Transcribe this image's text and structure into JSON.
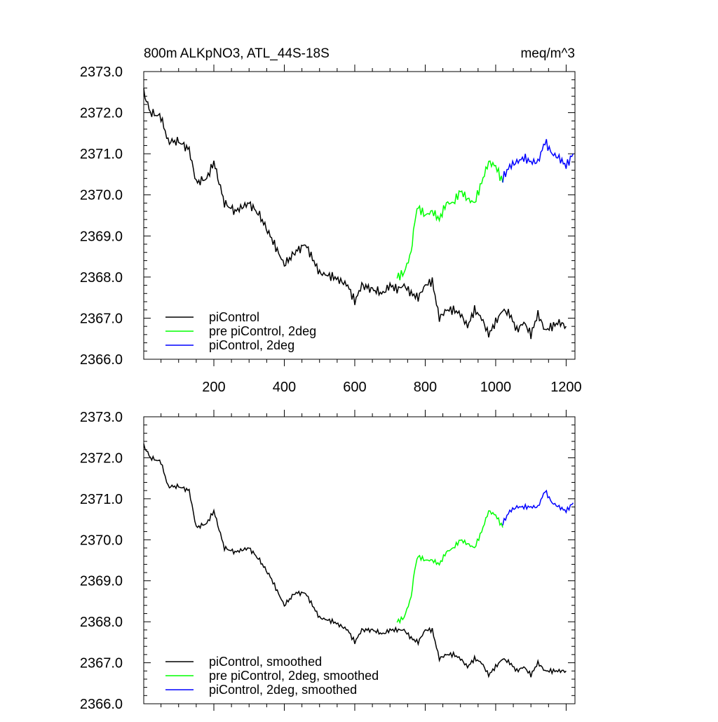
{
  "chart_data": [
    {
      "type": "line",
      "title": "800m ALKpNO3, ATL_44S-18S",
      "units_label": "meq/m^3",
      "xlabel": "",
      "ylabel": "",
      "xlim": [
        1,
        1225
      ],
      "ylim": [
        2366.0,
        2373.0
      ],
      "xticks": [
        200,
        400,
        600,
        800,
        1000,
        1200
      ],
      "xtick_labels": [
        "200",
        "400",
        "600",
        "800",
        "1000",
        "1200"
      ],
      "yticks": [
        2366.0,
        2367.0,
        2368.0,
        2369.0,
        2370.0,
        2371.0,
        2372.0,
        2373.0
      ],
      "ytick_labels": [
        "2366.0",
        "2367.0",
        "2368.0",
        "2369.0",
        "2370.0",
        "2371.0",
        "2372.0",
        "2373.0"
      ],
      "grid": false,
      "legend": "bottom-left",
      "series": [
        {
          "name": "piControl",
          "color": "#000000",
          "x": [
            1,
            20,
            50,
            70,
            100,
            130,
            150,
            180,
            200,
            230,
            260,
            300,
            330,
            360,
            400,
            430,
            460,
            500,
            540,
            580,
            600,
            620,
            650,
            680,
            700,
            720,
            740,
            760,
            780,
            800,
            820,
            840,
            860,
            880,
            900,
            920,
            940,
            960,
            980,
            1000,
            1020,
            1040,
            1060,
            1080,
            1100,
            1120,
            1140,
            1160,
            1180,
            1200
          ],
          "y": [
            2372.5,
            2372.0,
            2371.9,
            2371.3,
            2371.3,
            2371.1,
            2370.3,
            2370.4,
            2370.8,
            2369.8,
            2369.6,
            2369.8,
            2369.5,
            2369.0,
            2368.3,
            2368.6,
            2368.8,
            2368.1,
            2368.0,
            2367.8,
            2367.4,
            2367.8,
            2367.7,
            2367.6,
            2367.8,
            2367.7,
            2367.8,
            2367.6,
            2367.5,
            2367.8,
            2367.9,
            2367.0,
            2367.2,
            2367.2,
            2367.1,
            2366.8,
            2367.2,
            2367.0,
            2366.6,
            2366.9,
            2367.2,
            2367.1,
            2366.7,
            2366.9,
            2366.6,
            2367.1,
            2366.7,
            2366.8,
            2366.9,
            2366.8
          ]
        },
        {
          "name": "pre piControl, 2deg",
          "color": "#00ff00",
          "x": [
            720,
            740,
            760,
            770,
            780,
            800,
            820,
            840,
            860,
            880,
            900,
            920,
            940,
            960,
            980,
            1000,
            1020
          ],
          "y": [
            2368.0,
            2368.1,
            2368.6,
            2369.4,
            2369.7,
            2369.5,
            2369.6,
            2369.4,
            2369.8,
            2369.8,
            2370.1,
            2369.9,
            2369.8,
            2370.3,
            2370.8,
            2370.7,
            2370.3
          ]
        },
        {
          "name": "piControl, 2deg",
          "color": "#0000ff",
          "x": [
            1020,
            1040,
            1060,
            1080,
            1100,
            1120,
            1140,
            1160,
            1180,
            1200,
            1220
          ],
          "y": [
            2370.4,
            2370.7,
            2370.8,
            2370.9,
            2370.8,
            2370.8,
            2371.3,
            2371.0,
            2370.9,
            2370.7,
            2371.0
          ]
        }
      ]
    },
    {
      "type": "line",
      "title": "",
      "xlabel": "",
      "ylabel": "",
      "xlim": [
        1,
        1225
      ],
      "ylim": [
        2366.0,
        2373.0
      ],
      "xticks": [
        200,
        400,
        600,
        800,
        1000,
        1200
      ],
      "yticks": [
        2366.0,
        2367.0,
        2368.0,
        2369.0,
        2370.0,
        2371.0,
        2372.0,
        2373.0
      ],
      "ytick_labels": [
        "2366.0",
        "2367.0",
        "2368.0",
        "2369.0",
        "2370.0",
        "2371.0",
        "2372.0",
        "2373.0"
      ],
      "grid": false,
      "legend": "bottom-left",
      "series": [
        {
          "name": "piControl, smoothed",
          "color": "#000000",
          "x": [
            1,
            20,
            50,
            70,
            100,
            130,
            150,
            180,
            200,
            230,
            260,
            300,
            330,
            360,
            400,
            430,
            460,
            500,
            540,
            580,
            600,
            620,
            650,
            680,
            700,
            720,
            740,
            760,
            780,
            800,
            820,
            840,
            860,
            880,
            900,
            920,
            940,
            960,
            980,
            1000,
            1020,
            1040,
            1060,
            1080,
            1100,
            1120,
            1140,
            1160,
            1180,
            1200
          ],
          "y": [
            2372.3,
            2372.0,
            2371.9,
            2371.3,
            2371.3,
            2371.2,
            2370.3,
            2370.4,
            2370.7,
            2369.8,
            2369.7,
            2369.8,
            2369.5,
            2369.1,
            2368.4,
            2368.7,
            2368.7,
            2368.1,
            2368.0,
            2367.8,
            2367.5,
            2367.8,
            2367.8,
            2367.7,
            2367.8,
            2367.8,
            2367.8,
            2367.6,
            2367.5,
            2367.8,
            2367.8,
            2367.1,
            2367.2,
            2367.2,
            2367.1,
            2366.9,
            2367.1,
            2367.0,
            2366.7,
            2366.9,
            2367.1,
            2367.0,
            2366.8,
            2366.9,
            2366.7,
            2367.0,
            2366.8,
            2366.8,
            2366.8,
            2366.8
          ]
        },
        {
          "name": "pre piControl, 2deg, smoothed",
          "color": "#00ff00",
          "x": [
            720,
            740,
            760,
            770,
            780,
            800,
            820,
            840,
            860,
            880,
            900,
            920,
            940,
            960,
            980,
            1000,
            1020
          ],
          "y": [
            2368.0,
            2368.1,
            2368.6,
            2369.3,
            2369.6,
            2369.5,
            2369.5,
            2369.4,
            2369.7,
            2369.8,
            2370.0,
            2369.9,
            2369.8,
            2370.2,
            2370.7,
            2370.6,
            2370.3
          ]
        },
        {
          "name": "piControl, 2deg, smoothed",
          "color": "#0000ff",
          "x": [
            1020,
            1040,
            1060,
            1080,
            1100,
            1120,
            1140,
            1160,
            1180,
            1200,
            1220
          ],
          "y": [
            2370.4,
            2370.7,
            2370.8,
            2370.8,
            2370.8,
            2370.8,
            2371.2,
            2370.9,
            2370.8,
            2370.7,
            2370.9
          ]
        }
      ]
    }
  ]
}
